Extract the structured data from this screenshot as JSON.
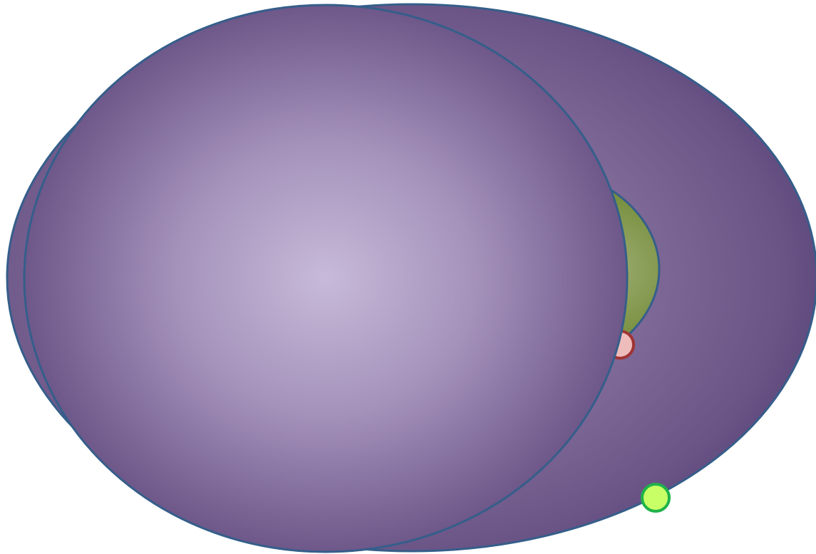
{
  "diagram": {
    "shapes": [
      {
        "id": "large-back-ellipse",
        "kind": "ellipse"
      },
      {
        "id": "olive-ellipse",
        "kind": "ellipse"
      },
      {
        "id": "pink-handle-dot",
        "kind": "circle"
      },
      {
        "id": "lime-handle-dot",
        "kind": "circle"
      },
      {
        "id": "front-sphere-ellipse",
        "kind": "ellipse"
      }
    ]
  },
  "colors": {
    "outline": "#355e8a",
    "purple_light": "#c4b6d6",
    "purple_mid": "#8f7aa6",
    "purple_dark": "#654f80",
    "olive_light": "#a3b07a",
    "olive_dark": "#5e7a2c",
    "pink_fill": "#efbcbc",
    "pink_stroke": "#a03434",
    "lime_fill": "#c9ff66",
    "lime_stroke": "#1fb34a"
  }
}
